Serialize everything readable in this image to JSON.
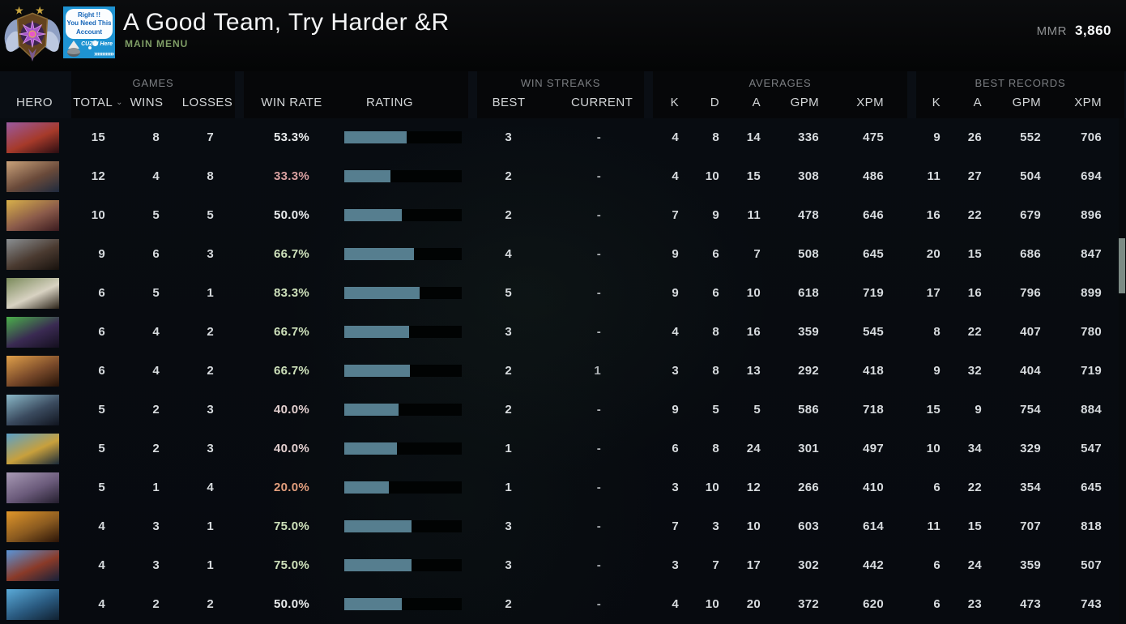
{
  "header": {
    "player_name": "A Good Team, Try Harder &R",
    "menu_label": "MAIN MENU",
    "mmr_label": "MMR",
    "mmr_value": "3,860",
    "avatar": {
      "bubble_line1": "Right !!",
      "bubble_line2": "You Need This",
      "bubble_line3": "Account",
      "tag_text": "CUZ U Here",
      "chevrons": "»»»»»»",
      "bg_color": "#1e93d2"
    }
  },
  "table": {
    "group_labels": {
      "games": "GAMES",
      "win_streaks": "WIN STREAKS",
      "averages": "AVERAGES",
      "best_records": "BEST RECORDS"
    },
    "columns": {
      "hero": "HERO",
      "total": "TOTAL",
      "wins": "WINS",
      "losses": "LOSSES",
      "win_rate": "WIN RATE",
      "rating": "RATING",
      "best": "BEST",
      "current": "CURRENT",
      "k": "K",
      "d": "D",
      "a": "A",
      "gpm": "GPM",
      "xpm": "XPM"
    },
    "colors": {
      "rating_bar_fill": "#567e8f",
      "rating_bar_bg": "#010303",
      "win_rate_high": "#cde0ba",
      "win_rate_mid": "#e8ebec",
      "win_rate_low": "#d8a0a0",
      "win_rate_very_low": "#e29e7d"
    },
    "rows": [
      {
        "total": 15,
        "wins": 8,
        "losses": 7,
        "win_rate": "53.3%",
        "win_rate_color": "#e8ebec",
        "rating_fill": 0.53,
        "streak_best": "3",
        "streak_current": "-",
        "avg_k": 4,
        "avg_d": 8,
        "avg_a": 14,
        "avg_gpm": 336,
        "avg_xpm": 475,
        "best_k": 9,
        "best_a": 26,
        "best_gpm": 552,
        "best_xpm": 706,
        "portrait_colors": [
          "#9a5aa0",
          "#a63a2a",
          "#2a0d12"
        ]
      },
      {
        "total": 12,
        "wins": 4,
        "losses": 8,
        "win_rate": "33.3%",
        "win_rate_color": "#d8a0a0",
        "rating_fill": 0.39,
        "streak_best": "2",
        "streak_current": "-",
        "avg_k": 4,
        "avg_d": 10,
        "avg_a": 15,
        "avg_gpm": 308,
        "avg_xpm": 486,
        "best_k": 11,
        "best_a": 27,
        "best_gpm": 504,
        "best_xpm": 694,
        "portrait_colors": [
          "#caa27a",
          "#6a4a3a",
          "#1e2a3e"
        ]
      },
      {
        "total": 10,
        "wins": 5,
        "losses": 5,
        "win_rate": "50.0%",
        "win_rate_color": "#e8ebec",
        "rating_fill": 0.49,
        "streak_best": "2",
        "streak_current": "-",
        "avg_k": 7,
        "avg_d": 9,
        "avg_a": 11,
        "avg_gpm": 478,
        "avg_xpm": 646,
        "best_k": 16,
        "best_a": 22,
        "best_gpm": 679,
        "best_xpm": 896,
        "portrait_colors": [
          "#d8b04a",
          "#8a5a4a",
          "#3a1a1e"
        ]
      },
      {
        "total": 9,
        "wins": 6,
        "losses": 3,
        "win_rate": "66.7%",
        "win_rate_color": "#cde0ba",
        "rating_fill": 0.59,
        "streak_best": "4",
        "streak_current": "-",
        "avg_k": 9,
        "avg_d": 6,
        "avg_a": 7,
        "avg_gpm": 508,
        "avg_xpm": 645,
        "best_k": 20,
        "best_a": 15,
        "best_gpm": 686,
        "best_xpm": 847,
        "portrait_colors": [
          "#8a8f92",
          "#4a3a30",
          "#17110d"
        ]
      },
      {
        "total": 6,
        "wins": 5,
        "losses": 1,
        "win_rate": "83.3%",
        "win_rate_color": "#cde0ba",
        "rating_fill": 0.64,
        "streak_best": "5",
        "streak_current": "-",
        "avg_k": 9,
        "avg_d": 6,
        "avg_a": 10,
        "avg_gpm": 618,
        "avg_xpm": 719,
        "best_k": 17,
        "best_a": 16,
        "best_gpm": 796,
        "best_xpm": 899,
        "portrait_colors": [
          "#7a8a5a",
          "#d8d2c2",
          "#2a2218"
        ]
      },
      {
        "total": 6,
        "wins": 4,
        "losses": 2,
        "win_rate": "66.7%",
        "win_rate_color": "#cde0ba",
        "rating_fill": 0.55,
        "streak_best": "3",
        "streak_current": "-",
        "avg_k": 4,
        "avg_d": 8,
        "avg_a": 16,
        "avg_gpm": 359,
        "avg_xpm": 545,
        "best_k": 8,
        "best_a": 22,
        "best_gpm": 407,
        "best_xpm": 780,
        "portrait_colors": [
          "#4ab04a",
          "#3a2a52",
          "#140f1e"
        ]
      },
      {
        "total": 6,
        "wins": 4,
        "losses": 2,
        "win_rate": "66.7%",
        "win_rate_color": "#cde0ba",
        "rating_fill": 0.56,
        "streak_best": "2",
        "streak_current": "1",
        "avg_k": 3,
        "avg_d": 8,
        "avg_a": 13,
        "avg_gpm": 292,
        "avg_xpm": 418,
        "best_k": 9,
        "best_a": 32,
        "best_gpm": 404,
        "best_xpm": 719,
        "portrait_colors": [
          "#e0a04a",
          "#7a4a2a",
          "#241208"
        ]
      },
      {
        "total": 5,
        "wins": 2,
        "losses": 3,
        "win_rate": "40.0%",
        "win_rate_color": "#e2cfcf",
        "rating_fill": 0.46,
        "streak_best": "2",
        "streak_current": "-",
        "avg_k": 9,
        "avg_d": 5,
        "avg_a": 5,
        "avg_gpm": 586,
        "avg_xpm": 718,
        "best_k": 15,
        "best_a": 9,
        "best_gpm": 754,
        "best_xpm": 884,
        "portrait_colors": [
          "#8ab8c8",
          "#3a4a5e",
          "#10141e"
        ]
      },
      {
        "total": 5,
        "wins": 2,
        "losses": 3,
        "win_rate": "40.0%",
        "win_rate_color": "#e2cfcf",
        "rating_fill": 0.45,
        "streak_best": "1",
        "streak_current": "-",
        "avg_k": 6,
        "avg_d": 8,
        "avg_a": 24,
        "avg_gpm": 301,
        "avg_xpm": 497,
        "best_k": 10,
        "best_a": 34,
        "best_gpm": 329,
        "best_xpm": 547,
        "portrait_colors": [
          "#5aa0c8",
          "#c8a03c",
          "#1a2a3a"
        ]
      },
      {
        "total": 5,
        "wins": 1,
        "losses": 4,
        "win_rate": "20.0%",
        "win_rate_color": "#e29e7d",
        "rating_fill": 0.38,
        "streak_best": "1",
        "streak_current": "-",
        "avg_k": 3,
        "avg_d": 10,
        "avg_a": 12,
        "avg_gpm": 266,
        "avg_xpm": 410,
        "best_k": 6,
        "best_a": 22,
        "best_gpm": 354,
        "best_xpm": 645,
        "portrait_colors": [
          "#a89ab5",
          "#6a5a7a",
          "#241e2e"
        ]
      },
      {
        "total": 4,
        "wins": 3,
        "losses": 1,
        "win_rate": "75.0%",
        "win_rate_color": "#cde0ba",
        "rating_fill": 0.57,
        "streak_best": "3",
        "streak_current": "-",
        "avg_k": 7,
        "avg_d": 3,
        "avg_a": 10,
        "avg_gpm": 603,
        "avg_xpm": 614,
        "best_k": 11,
        "best_a": 15,
        "best_gpm": 707,
        "best_xpm": 818,
        "portrait_colors": [
          "#e0962a",
          "#8a5a20",
          "#2a1408"
        ]
      },
      {
        "total": 4,
        "wins": 3,
        "losses": 1,
        "win_rate": "75.0%",
        "win_rate_color": "#cde0ba",
        "rating_fill": 0.57,
        "streak_best": "3",
        "streak_current": "-",
        "avg_k": 3,
        "avg_d": 7,
        "avg_a": 17,
        "avg_gpm": 302,
        "avg_xpm": 442,
        "best_k": 6,
        "best_a": 24,
        "best_gpm": 359,
        "best_xpm": 507,
        "portrait_colors": [
          "#5a95d8",
          "#8a3a28",
          "#14203a"
        ]
      },
      {
        "total": 4,
        "wins": 2,
        "losses": 2,
        "win_rate": "50.0%",
        "win_rate_color": "#e8ebec",
        "rating_fill": 0.49,
        "streak_best": "2",
        "streak_current": "-",
        "avg_k": 4,
        "avg_d": 10,
        "avg_a": 20,
        "avg_gpm": 372,
        "avg_xpm": 620,
        "best_k": 6,
        "best_a": 23,
        "best_gpm": 473,
        "best_xpm": 743,
        "portrait_colors": [
          "#5aaad8",
          "#2a5a80",
          "#102030"
        ]
      }
    ]
  }
}
